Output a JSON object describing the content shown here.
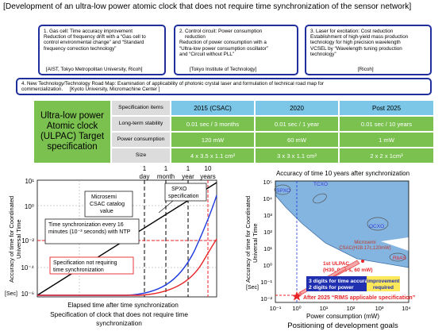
{
  "title": "[Development of an ultra-low power atomic clock that does not require time synchronization of the sensor network]",
  "boxes": {
    "b1": {
      "lines": [
        "1. Gas cell: Time accuracy improvement",
        "Reduction of frequency drift with a “Gas cell to",
        "control environmental change” and “Standard",
        "frequency correction technology”"
      ],
      "foot": "[AIST, Tokyo Metropolitan University, Ricoh]"
    },
    "b2": {
      "lines": [
        "2. Control circuit: Power consumption",
        "    reduction",
        "Reduction of power consumption with a",
        "“Ultra-low power consumption oscillator”",
        "and “Circuit without PLL”"
      ],
      "foot": "[Tokyo Institute of Technology]"
    },
    "b3": {
      "lines": [
        "3. Laser for excitation: Cost reduction",
        "Establishment of high-yield mass production",
        "technology for high precision wavelength",
        "VCSEL by “Wavelength tuning production",
        "technology”"
      ],
      "foot": "[Ricoh]"
    },
    "b4": {
      "line1": "4. New Technology/Technology Road Map: Examination of applicability of photonic crystal laser and formulation of technical road map for",
      "line2": "commercialization.     [Kyoto University, Micromachine Center ]"
    }
  },
  "spec": {
    "target": "Ultra-low power Atomic clock (ULPAC) Target specification",
    "header_label": "Specification items",
    "cols": [
      "2015 (CSAC)",
      "2020",
      "Post 2025"
    ],
    "rows": [
      {
        "label": "Long-term stability",
        "values": [
          "0.01 sec / 3 months",
          "0.01 sec / 1 year",
          "0.01 sec / 10 years"
        ]
      },
      {
        "label": "Power consumption",
        "values": [
          "120 mW",
          "60 mW",
          "1 mW"
        ]
      },
      {
        "label": "Size",
        "values": [
          "4 x 3.5 x 1.1 cm³",
          "3 x 3 x 1.1 cm³",
          "2 x 2 x 1cm³"
        ]
      }
    ]
  },
  "left_chart": {
    "top_labels": [
      "1",
      "day",
      "1",
      "month",
      "1",
      "year",
      "10",
      "years"
    ],
    "y_ticks": [
      "10¹",
      "10⁰",
      "10⁻²",
      "10⁻⁴",
      "10⁻⁶"
    ],
    "y_unit": "[Sec]",
    "ylabel": "Accuracy of time for Coordinated Universal Time",
    "xlabel": "Elapsed time after time synchronization",
    "caption": "Specification of clock that does not require time synchronization",
    "ann_microsemi": "Microsemi CSAC catalog value",
    "ann_spxo": "SPXO specification",
    "ann_sync": "Time synchronization every 16 minutes (10⁻³ seconds) with NTP",
    "ann_spec": "Specification not requiring time synchronization"
  },
  "right_chart": {
    "title": "Accuracy of time 10 years after synchronization",
    "ylabel": "Accuracy of time for Coordinated Universal Time",
    "y_unit": "[Sec]",
    "xlabel": "Power consumption (mW)",
    "caption": "Positioning of development goals",
    "x_ticks": [
      "10⁻¹",
      "10⁰",
      "10¹",
      "10²",
      "10³",
      "10⁴"
    ],
    "y_ticks": [
      "10⁵",
      "10⁴",
      "10³",
      "10²",
      "10¹",
      "10⁰",
      "10⁻¹",
      "10⁻²"
    ],
    "lbl_spxo": "SPXO",
    "lbl_tcxo": "TCXO",
    "lbl_ocxo": "OCXO",
    "lbl_rbas": "RbAS",
    "lbl_microsemi1": "Microsemi",
    "lbl_microsemi2": "CSAC(H28.17c,120mW)",
    "lbl_ulpac1": "1st ULPAC",
    "lbl_ulpac2": "(H30, 0.86 s, 60 mW)",
    "improve1": "3 digits for time accuracy",
    "improve2": "2 digits for power",
    "improve_req1": "improvement",
    "improve_req2": "required",
    "after2025": "After 2025 “RIMS applicable specification”"
  },
  "colors": {
    "box_border": "#1f2f9c",
    "green": "#7bc14f",
    "head_blue": "#7cc7e8",
    "blue_region": "#6fa8dc",
    "red": "#e8262a"
  }
}
